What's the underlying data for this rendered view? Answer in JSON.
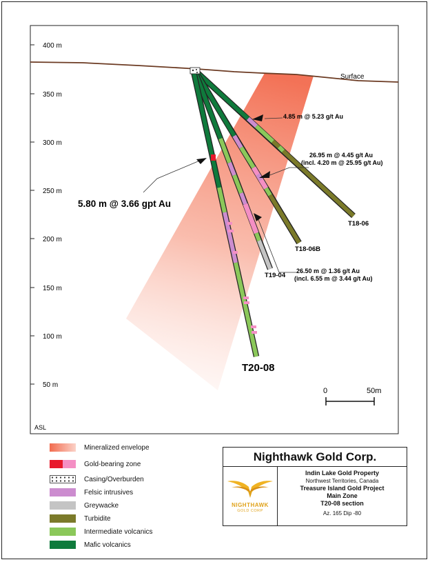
{
  "y_axis": {
    "unit_label": "ASL",
    "ticks": [
      "400 m",
      "350 m",
      "300 m",
      "250 m",
      "200 m",
      "150 m",
      "100 m",
      "50 m"
    ]
  },
  "surface_label": "Surface",
  "drillholes": [
    {
      "name": "T20-08"
    },
    {
      "name": "T19-04"
    },
    {
      "name": "T18-06B"
    },
    {
      "name": "T18-06"
    }
  ],
  "intercepts": [
    {
      "line1": "4.85 m @ 5.23 g/t Au",
      "line2": ""
    },
    {
      "line1": "26.95 m @ 4.45 g/t Au",
      "line2": "(incl. 4.20 m @ 25.95 g/t Au)"
    },
    {
      "line1": "26.50 m @ 1.36 g/t Au",
      "line2": "(incl. 6.55 m @ 3.44 g/t Au)"
    },
    {
      "line1": "5.80 m @ 3.66 gpt Au",
      "line2": ""
    }
  ],
  "scale_bar": {
    "start": "0",
    "end": "50m"
  },
  "legend": [
    {
      "label": "Mineralized envelope",
      "color": "#f26b4e"
    },
    {
      "label": "Gold-bearing zone",
      "color": "#e8192c",
      "color2": "#f48fc4"
    },
    {
      "label": "Casing/Overburden",
      "color": "#ffffff"
    },
    {
      "label": "Felsic intrusives",
      "color": "#cc8ccf"
    },
    {
      "label": "Greywacke",
      "color": "#c4c4c4"
    },
    {
      "label": "Turbidite",
      "color": "#7b7a2a"
    },
    {
      "label": "Intermediate volcanics",
      "color": "#8bc85a"
    },
    {
      "label": "Mafic volcanics",
      "color": "#0f7a3c"
    }
  ],
  "title_block": {
    "company": "Nighthawk Gold Corp.",
    "logo_name": "NIGHTHAWK",
    "logo_sub": "GOLD CORP",
    "property": "Indin Lake Gold Property",
    "location": "Northwest Territories, Canada",
    "project": "Treasure Island Gold Project",
    "zone": "Main Zone",
    "section": "T20-08 section",
    "orientation": "Az. 165  Dip -80"
  },
  "colors": {
    "surface": "#6b3a22",
    "mafic": "#0f7a3c",
    "intermediate": "#8bc85a",
    "turbidite": "#7b7a2a",
    "felsic": "#cc8ccf",
    "greywacke": "#c4c4c4",
    "gold_red": "#e8192c",
    "gold_pink": "#f48fc4",
    "envelope": "#f26b4e"
  }
}
